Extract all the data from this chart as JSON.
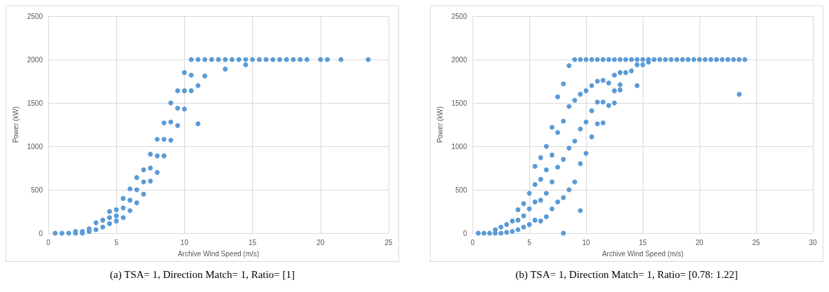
{
  "chart_data": [
    {
      "type": "scatter",
      "xlabel": "Archive Wind Speed (m/s)",
      "ylabel": "Power (kW)",
      "xlim": [
        0,
        25
      ],
      "xticks": [
        0,
        5,
        10,
        15,
        20,
        25
      ],
      "ylim": [
        0,
        2500
      ],
      "yticks": [
        0,
        500,
        1000,
        1500,
        2000,
        2500
      ],
      "grid": true,
      "marker": "circle",
      "series": [
        {
          "color": "#5b9bd5",
          "x": [
            0.5,
            1,
            1.5,
            2,
            2,
            2.5,
            2.5,
            3,
            3,
            3.5,
            3.5,
            4,
            4,
            4.5,
            4.5,
            4.5,
            5,
            5,
            5,
            5.5,
            5.5,
            5.5,
            6,
            6,
            6,
            6.5,
            6.5,
            6.5,
            7,
            7,
            7,
            7.5,
            7.5,
            7.5,
            8,
            8,
            8,
            8.5,
            8.5,
            8.5,
            9,
            9,
            9,
            9.5,
            9.5,
            9.5,
            10,
            10,
            10,
            10.5,
            10.5,
            10.5,
            11,
            11,
            11,
            11.5,
            11.5,
            12,
            12.5,
            13,
            13,
            13.5,
            14,
            14.5,
            14.5,
            15,
            15.5,
            16,
            16.5,
            17,
            17.5,
            18,
            18.5,
            19,
            20,
            20.5,
            21.5,
            23.5
          ],
          "values": [
            0,
            0,
            0,
            0,
            20,
            0,
            20,
            20,
            50,
            40,
            120,
            70,
            150,
            110,
            180,
            250,
            140,
            200,
            270,
            180,
            290,
            400,
            260,
            380,
            510,
            350,
            500,
            640,
            450,
            590,
            730,
            600,
            750,
            910,
            700,
            890,
            1080,
            890,
            1080,
            1270,
            1070,
            1280,
            1500,
            1240,
            1440,
            1640,
            1430,
            1640,
            1850,
            1640,
            1820,
            2000,
            1260,
            1700,
            2000,
            1810,
            2000,
            2000,
            2000,
            1890,
            2000,
            2000,
            2000,
            1940,
            2000,
            2000,
            2000,
            2000,
            2000,
            2000,
            2000,
            2000,
            2000,
            2000,
            2000,
            2000,
            2000,
            2000
          ]
        }
      ],
      "annotations": [
        "(a) TSA= 1, Direction Match= 1, Ratio= [1]"
      ]
    },
    {
      "type": "scatter",
      "xlabel": "Archive Wind Speed (m/s)",
      "ylabel": "Power (kW)",
      "xlim": [
        0,
        30
      ],
      "xticks": [
        0,
        5,
        10,
        15,
        20,
        25,
        30
      ],
      "ylim": [
        0,
        2500
      ],
      "yticks": [
        0,
        500,
        1000,
        1500,
        2000,
        2500
      ],
      "grid": true,
      "marker": "circle",
      "series": [
        {
          "color": "#5b9bd5",
          "x": [
            0.5,
            1,
            1.5,
            2,
            2,
            2.5,
            2.5,
            3,
            3,
            3.5,
            3.5,
            4,
            4,
            4,
            4.5,
            4.5,
            4.5,
            5,
            5,
            5,
            5.5,
            5.5,
            5.5,
            5.5,
            6,
            6,
            6,
            6,
            6.5,
            6.5,
            6.5,
            6.5,
            7,
            7,
            7,
            7,
            7.5,
            7.5,
            7.5,
            7.5,
            8,
            8,
            8,
            8,
            8,
            8.5,
            8.5,
            8.5,
            8.5,
            9,
            9,
            9,
            9,
            9.5,
            9.5,
            9.5,
            9.5,
            9.5,
            10,
            10,
            10,
            10,
            10.5,
            10.5,
            10.5,
            10.5,
            11,
            11,
            11,
            11,
            11.5,
            11.5,
            11.5,
            11.5,
            12,
            12,
            12,
            12.5,
            12.5,
            12.5,
            12.5,
            13,
            13,
            13,
            13,
            13.5,
            13.5,
            14,
            14,
            14.5,
            14.5,
            14.5,
            15,
            15,
            15.5,
            15.5,
            16,
            16.5,
            17,
            17.5,
            18,
            18.5,
            19,
            19.5,
            20,
            20.5,
            21,
            21.5,
            22,
            22.5,
            23,
            23.5,
            23.5,
            24
          ],
          "values": [
            0,
            0,
            0,
            0,
            40,
            0,
            70,
            10,
            100,
            20,
            140,
            40,
            150,
            270,
            70,
            200,
            340,
            100,
            280,
            460,
            150,
            360,
            560,
            770,
            140,
            380,
            620,
            870,
            190,
            460,
            730,
            1000,
            280,
            590,
            900,
            1220,
            360,
            760,
            1160,
            1570,
            0,
            410,
            850,
            1290,
            1720,
            500,
            980,
            1460,
            1930,
            590,
            1060,
            1530,
            2000,
            260,
            800,
            1200,
            1600,
            2000,
            920,
            1280,
            1640,
            2000,
            1110,
            1410,
            1700,
            2000,
            1260,
            1510,
            1750,
            2000,
            1270,
            1510,
            1760,
            2000,
            1470,
            1730,
            2000,
            1500,
            1640,
            1820,
            2000,
            1650,
            1710,
            1850,
            2000,
            1850,
            2000,
            1870,
            2000,
            1700,
            1940,
            2000,
            1940,
            2000,
            1970,
            2000,
            2000,
            2000,
            2000,
            2000,
            2000,
            2000,
            2000,
            2000,
            2000,
            2000,
            2000,
            2000,
            2000,
            2000,
            2000,
            1600,
            2000,
            2000
          ]
        }
      ],
      "annotations": [
        "(b) TSA= 1, Direction Match= 1, Ratio= [0.78: 1.22]"
      ]
    }
  ]
}
